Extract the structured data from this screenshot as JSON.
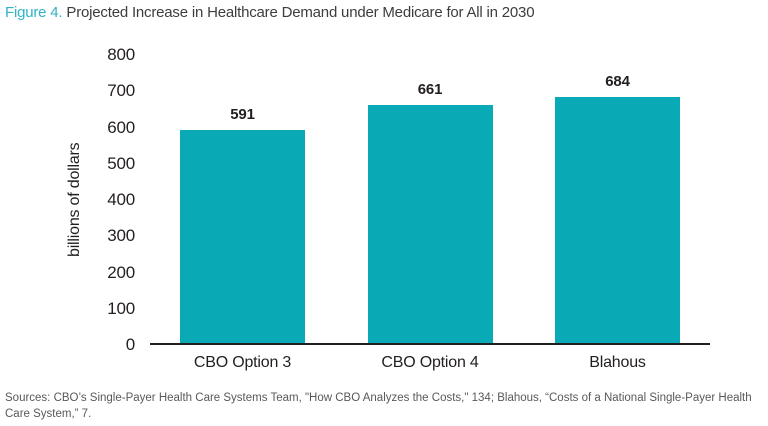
{
  "title": {
    "figure_label": "Figure 4.",
    "text": "Projected Increase in Healthcare Demand under Medicare for All in 2030"
  },
  "source": "Sources: CBO’s Single-Payer Health Care Systems Team, \"How CBO Analyzes the Costs,\" 134; Blahous, “Costs of a National Single-Payer Health Care System,” 7.",
  "colors": {
    "bar": "#09a9b5",
    "figure_label": "#2fb3c3",
    "title_text": "#3d3d3d",
    "axis_text": "#231f20",
    "source_text": "#58595b"
  },
  "chart_data": {
    "type": "bar",
    "categories": [
      "CBO Option 3",
      "CBO Option 4",
      "Blahous"
    ],
    "values": [
      591,
      661,
      684
    ],
    "title": "Projected Increase in Healthcare Demand under Medicare for All in 2030",
    "xlabel": "",
    "ylabel": "billions of dollars",
    "ylim": [
      0,
      800
    ],
    "ytick_step": 100,
    "grid": false,
    "legend": false,
    "bar_labels": true
  }
}
